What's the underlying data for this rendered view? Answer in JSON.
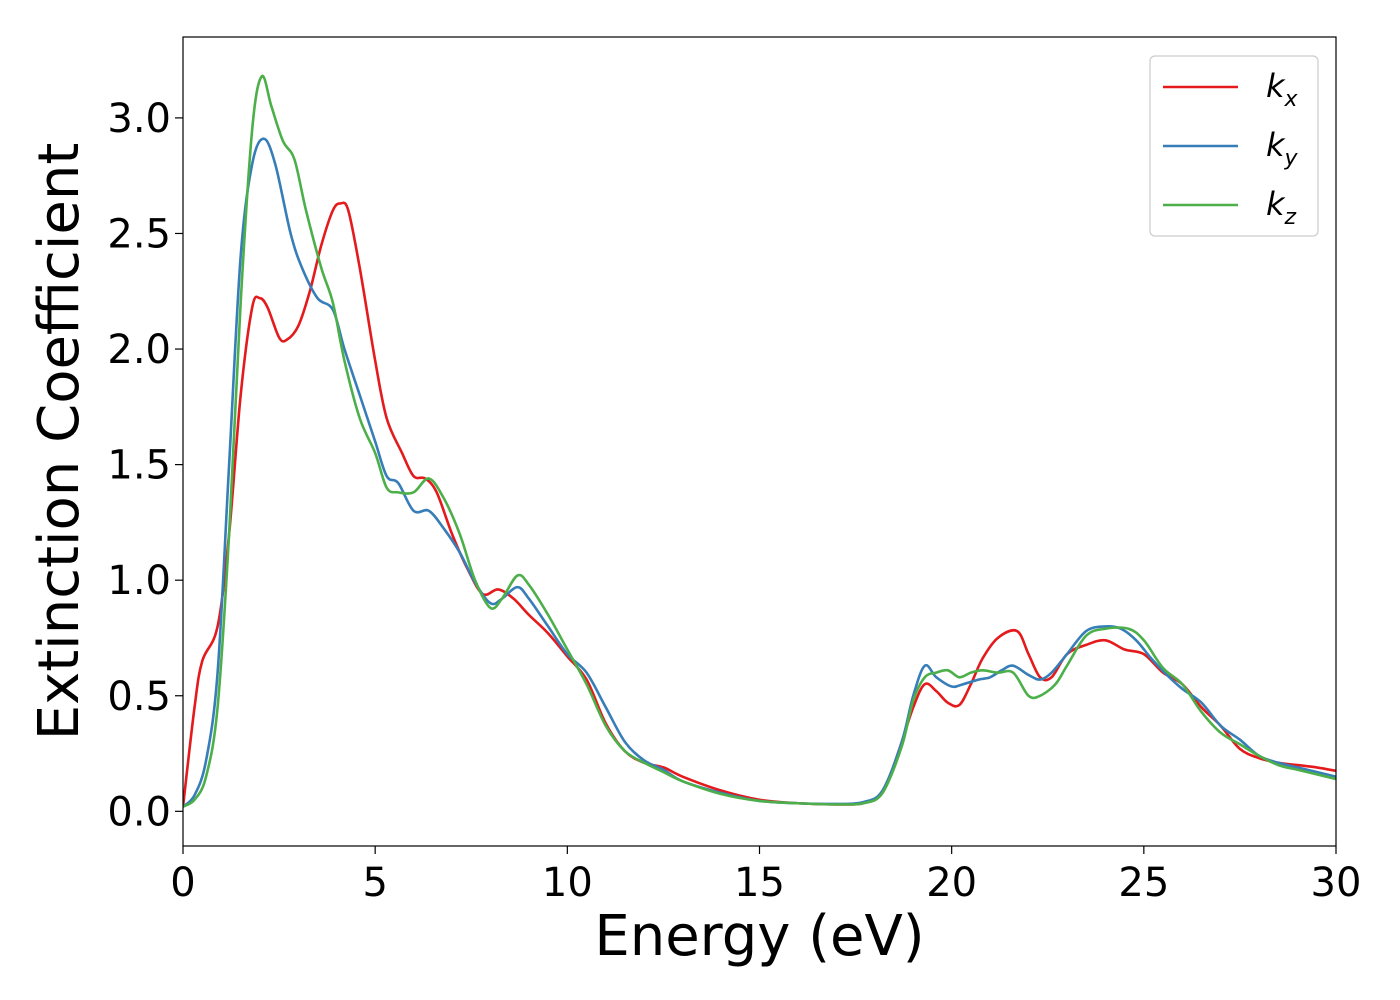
{
  "chart_data": {
    "type": "line",
    "title": "",
    "xlabel": "Energy (eV)",
    "ylabel": "Extinction Coefficient",
    "xlim": [
      0,
      30
    ],
    "ylim": [
      -0.15,
      3.35
    ],
    "xticks": [
      0,
      5,
      10,
      15,
      20,
      25,
      30
    ],
    "xtick_labels": [
      "0",
      "5",
      "10",
      "15",
      "20",
      "25",
      "30"
    ],
    "yticks": [
      0.0,
      0.5,
      1.0,
      1.5,
      2.0,
      2.5,
      3.0
    ],
    "ytick_labels": [
      "0.0",
      "0.5",
      "1.0",
      "1.5",
      "2.0",
      "2.5",
      "3.0"
    ],
    "grid": false,
    "legend_position": "top-right",
    "series": [
      {
        "name": "k_x",
        "legend_base": "k",
        "legend_sub": "x",
        "color": "#e41a1c",
        "points": [
          [
            0,
            0.02
          ],
          [
            0.3,
            0.45
          ],
          [
            0.5,
            0.65
          ],
          [
            0.9,
            0.8
          ],
          [
            1.2,
            1.2
          ],
          [
            1.5,
            1.8
          ],
          [
            1.8,
            2.18
          ],
          [
            2.0,
            2.22
          ],
          [
            2.2,
            2.18
          ],
          [
            2.5,
            2.05
          ],
          [
            2.7,
            2.04
          ],
          [
            3.0,
            2.1
          ],
          [
            3.3,
            2.25
          ],
          [
            3.6,
            2.45
          ],
          [
            3.9,
            2.6
          ],
          [
            4.1,
            2.63
          ],
          [
            4.3,
            2.6
          ],
          [
            4.6,
            2.35
          ],
          [
            5.0,
            1.95
          ],
          [
            5.3,
            1.7
          ],
          [
            5.7,
            1.55
          ],
          [
            6.0,
            1.45
          ],
          [
            6.3,
            1.44
          ],
          [
            6.6,
            1.38
          ],
          [
            7.0,
            1.2
          ],
          [
            7.4,
            1.05
          ],
          [
            7.8,
            0.94
          ],
          [
            8.2,
            0.96
          ],
          [
            8.6,
            0.92
          ],
          [
            9.0,
            0.85
          ],
          [
            9.5,
            0.77
          ],
          [
            10.0,
            0.67
          ],
          [
            10.5,
            0.57
          ],
          [
            11.0,
            0.38
          ],
          [
            11.5,
            0.26
          ],
          [
            12.0,
            0.21
          ],
          [
            12.5,
            0.19
          ],
          [
            13.0,
            0.15
          ],
          [
            14.0,
            0.09
          ],
          [
            15.0,
            0.05
          ],
          [
            16.0,
            0.035
          ],
          [
            17.0,
            0.03
          ],
          [
            17.7,
            0.035
          ],
          [
            18.2,
            0.08
          ],
          [
            18.6,
            0.25
          ],
          [
            19.0,
            0.45
          ],
          [
            19.3,
            0.55
          ],
          [
            19.6,
            0.52
          ],
          [
            19.9,
            0.47
          ],
          [
            20.2,
            0.46
          ],
          [
            20.5,
            0.55
          ],
          [
            20.8,
            0.66
          ],
          [
            21.2,
            0.75
          ],
          [
            21.7,
            0.78
          ],
          [
            22.0,
            0.68
          ],
          [
            22.3,
            0.58
          ],
          [
            22.6,
            0.58
          ],
          [
            23.0,
            0.68
          ],
          [
            23.5,
            0.72
          ],
          [
            24.0,
            0.74
          ],
          [
            24.5,
            0.7
          ],
          [
            25.0,
            0.68
          ],
          [
            25.5,
            0.6
          ],
          [
            26.0,
            0.55
          ],
          [
            26.5,
            0.45
          ],
          [
            27.0,
            0.37
          ],
          [
            27.5,
            0.27
          ],
          [
            28.0,
            0.23
          ],
          [
            28.5,
            0.21
          ],
          [
            29.0,
            0.2
          ],
          [
            29.5,
            0.19
          ],
          [
            30.0,
            0.175
          ]
        ]
      },
      {
        "name": "k_y",
        "legend_base": "k",
        "legend_sub": "y",
        "color": "#377eb8",
        "points": [
          [
            0,
            0.02
          ],
          [
            0.3,
            0.07
          ],
          [
            0.6,
            0.22
          ],
          [
            0.9,
            0.6
          ],
          [
            1.2,
            1.5
          ],
          [
            1.5,
            2.4
          ],
          [
            1.8,
            2.8
          ],
          [
            2.1,
            2.91
          ],
          [
            2.4,
            2.8
          ],
          [
            2.8,
            2.5
          ],
          [
            3.1,
            2.35
          ],
          [
            3.5,
            2.22
          ],
          [
            3.9,
            2.17
          ],
          [
            4.2,
            2.0
          ],
          [
            4.6,
            1.8
          ],
          [
            5.0,
            1.6
          ],
          [
            5.3,
            1.45
          ],
          [
            5.6,
            1.42
          ],
          [
            6.0,
            1.3
          ],
          [
            6.4,
            1.3
          ],
          [
            6.8,
            1.22
          ],
          [
            7.2,
            1.12
          ],
          [
            7.6,
            0.99
          ],
          [
            8.0,
            0.9
          ],
          [
            8.3,
            0.92
          ],
          [
            8.7,
            0.97
          ],
          [
            9.0,
            0.92
          ],
          [
            9.5,
            0.8
          ],
          [
            10.0,
            0.68
          ],
          [
            10.5,
            0.6
          ],
          [
            11.0,
            0.45
          ],
          [
            11.5,
            0.3
          ],
          [
            12.0,
            0.22
          ],
          [
            12.5,
            0.18
          ],
          [
            13.0,
            0.13
          ],
          [
            14.0,
            0.08
          ],
          [
            15.0,
            0.045
          ],
          [
            16.0,
            0.035
          ],
          [
            17.0,
            0.032
          ],
          [
            17.7,
            0.04
          ],
          [
            18.2,
            0.09
          ],
          [
            18.7,
            0.3
          ],
          [
            19.0,
            0.5
          ],
          [
            19.3,
            0.63
          ],
          [
            19.6,
            0.58
          ],
          [
            20.0,
            0.54
          ],
          [
            20.3,
            0.55
          ],
          [
            20.7,
            0.57
          ],
          [
            21.0,
            0.58
          ],
          [
            21.3,
            0.61
          ],
          [
            21.6,
            0.63
          ],
          [
            22.0,
            0.59
          ],
          [
            22.3,
            0.57
          ],
          [
            22.6,
            0.6
          ],
          [
            23.0,
            0.68
          ],
          [
            23.5,
            0.78
          ],
          [
            24.0,
            0.8
          ],
          [
            24.4,
            0.79
          ],
          [
            24.8,
            0.74
          ],
          [
            25.2,
            0.66
          ],
          [
            25.6,
            0.59
          ],
          [
            26.0,
            0.53
          ],
          [
            26.5,
            0.47
          ],
          [
            27.0,
            0.37
          ],
          [
            27.5,
            0.31
          ],
          [
            28.0,
            0.24
          ],
          [
            28.5,
            0.21
          ],
          [
            29.0,
            0.19
          ],
          [
            29.5,
            0.17
          ],
          [
            30.0,
            0.15
          ]
        ]
      },
      {
        "name": "k_z",
        "legend_base": "k",
        "legend_sub": "z",
        "color": "#4daf4a",
        "points": [
          [
            0,
            0.02
          ],
          [
            0.3,
            0.05
          ],
          [
            0.6,
            0.15
          ],
          [
            0.9,
            0.45
          ],
          [
            1.2,
            1.2
          ],
          [
            1.5,
            2.2
          ],
          [
            1.8,
            2.95
          ],
          [
            2.05,
            3.18
          ],
          [
            2.3,
            3.05
          ],
          [
            2.6,
            2.9
          ],
          [
            2.9,
            2.82
          ],
          [
            3.2,
            2.6
          ],
          [
            3.6,
            2.35
          ],
          [
            3.9,
            2.2
          ],
          [
            4.2,
            1.95
          ],
          [
            4.6,
            1.7
          ],
          [
            5.0,
            1.55
          ],
          [
            5.3,
            1.4
          ],
          [
            5.6,
            1.38
          ],
          [
            6.0,
            1.38
          ],
          [
            6.4,
            1.44
          ],
          [
            6.8,
            1.35
          ],
          [
            7.2,
            1.2
          ],
          [
            7.6,
            1.0
          ],
          [
            8.0,
            0.88
          ],
          [
            8.3,
            0.92
          ],
          [
            8.7,
            1.02
          ],
          [
            9.0,
            0.98
          ],
          [
            9.5,
            0.85
          ],
          [
            10.0,
            0.7
          ],
          [
            10.5,
            0.55
          ],
          [
            11.0,
            0.37
          ],
          [
            11.5,
            0.26
          ],
          [
            12.0,
            0.21
          ],
          [
            12.5,
            0.17
          ],
          [
            13.0,
            0.13
          ],
          [
            14.0,
            0.075
          ],
          [
            15.0,
            0.045
          ],
          [
            16.0,
            0.035
          ],
          [
            17.0,
            0.03
          ],
          [
            17.7,
            0.035
          ],
          [
            18.2,
            0.08
          ],
          [
            18.7,
            0.28
          ],
          [
            19.0,
            0.48
          ],
          [
            19.3,
            0.58
          ],
          [
            19.6,
            0.6
          ],
          [
            19.9,
            0.61
          ],
          [
            20.2,
            0.58
          ],
          [
            20.5,
            0.6
          ],
          [
            20.8,
            0.61
          ],
          [
            21.2,
            0.6
          ],
          [
            21.6,
            0.6
          ],
          [
            22.0,
            0.5
          ],
          [
            22.3,
            0.5
          ],
          [
            22.7,
            0.55
          ],
          [
            23.0,
            0.63
          ],
          [
            23.5,
            0.76
          ],
          [
            24.0,
            0.79
          ],
          [
            24.6,
            0.79
          ],
          [
            25.0,
            0.74
          ],
          [
            25.5,
            0.62
          ],
          [
            26.0,
            0.55
          ],
          [
            26.5,
            0.43
          ],
          [
            27.0,
            0.34
          ],
          [
            27.5,
            0.29
          ],
          [
            28.0,
            0.24
          ],
          [
            28.5,
            0.2
          ],
          [
            29.0,
            0.18
          ],
          [
            29.5,
            0.16
          ],
          [
            30.0,
            0.14
          ]
        ]
      }
    ]
  }
}
